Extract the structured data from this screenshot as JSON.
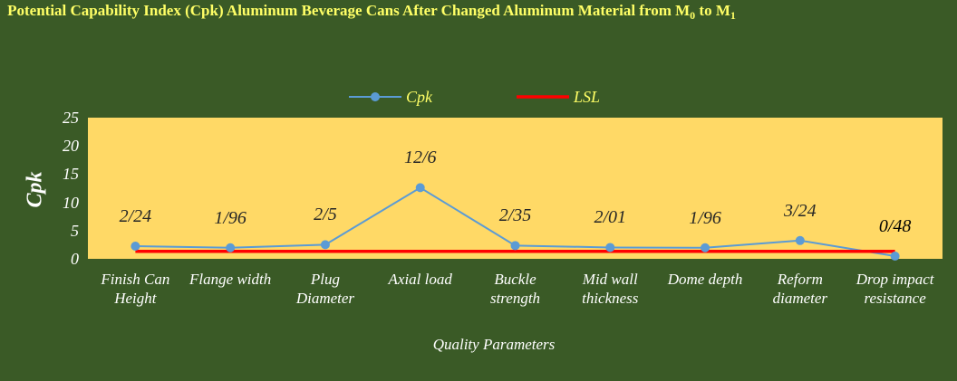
{
  "chart_data": {
    "type": "line",
    "title": [
      "Potential Capability Index (Cpk) Aluminum Beverage Cans After Changed Aluminum Material from M",
      "0",
      " to M",
      "1"
    ],
    "x_label": "Quality Parameters",
    "y_label": "Cpk",
    "categories": [
      "Finish Can Height",
      "Flange width",
      "Plug Diameter",
      "Axial load",
      "Buckle strength",
      "Mid wall thickness",
      "Dome depth",
      "Reform diameter",
      "Drop impact resistance"
    ],
    "series": [
      {
        "name": "Cpk",
        "color": "#5b9bd5",
        "values": [
          2.24,
          1.96,
          2.5,
          12.6,
          2.35,
          2.01,
          1.96,
          3.24,
          0.48
        ],
        "value_labels": [
          "2/24",
          "1/96",
          "2/5",
          "12/6",
          "2/35",
          "2/01",
          "1/96",
          "3/24",
          "0/48"
        ]
      },
      {
        "name": "LSL",
        "color": "#ff0000",
        "values": [
          1.33,
          1.33,
          1.33,
          1.33,
          1.33,
          1.33,
          1.33,
          1.33,
          1.33
        ]
      }
    ],
    "ylim": [
      0,
      25
    ],
    "yticks": [
      0,
      5,
      10,
      15,
      20,
      25
    ],
    "plot_color": "#ffd966",
    "legend": "top"
  }
}
